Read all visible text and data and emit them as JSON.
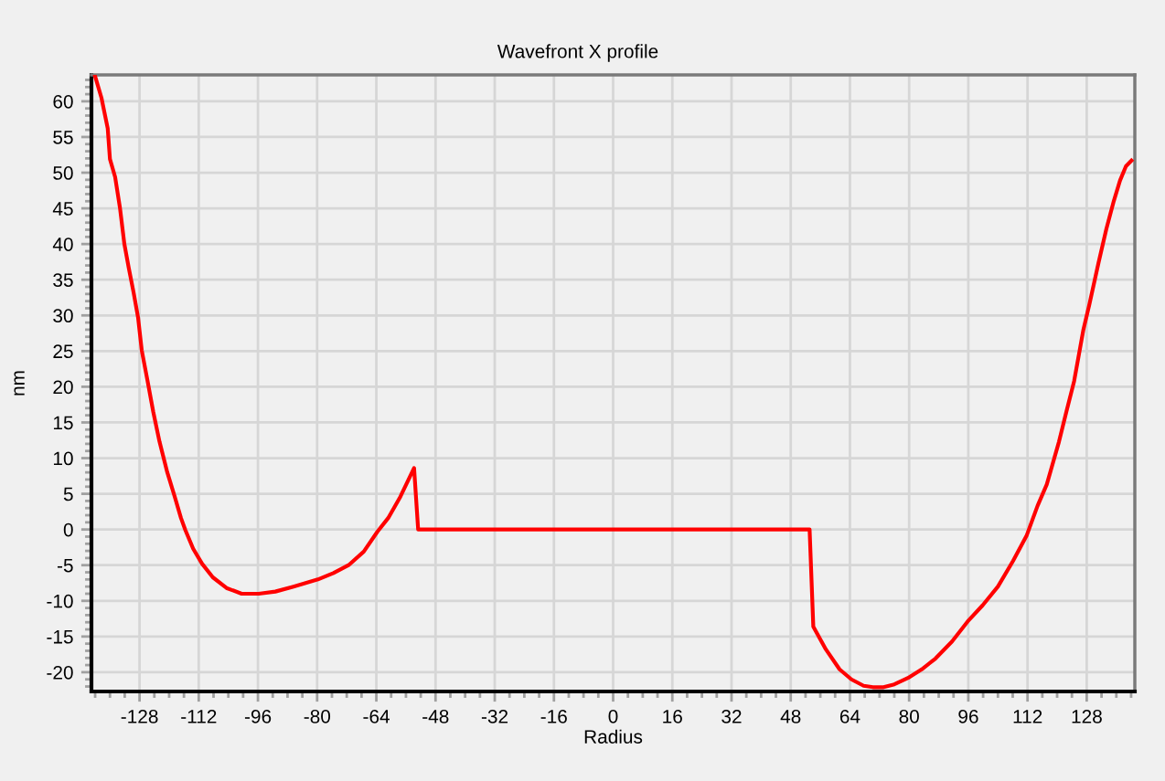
{
  "chart_data": {
    "type": "line",
    "title": "Wavefront X profile",
    "xlabel": "Radius",
    "ylabel": "nm",
    "series": [
      {
        "color": "#ff0000",
        "x": [
          -140.0,
          -138.3,
          -136.6,
          -136.0,
          -134.6,
          -133.3,
          -132.1,
          -130.9,
          -129.6,
          -128.4,
          -127.4,
          -125.9,
          -124.3,
          -122.6,
          -120.5,
          -118.5,
          -116.8,
          -115.6,
          -113.5,
          -111.1,
          -108.2,
          -104.5,
          -100.4,
          -95.8,
          -91.3,
          -86.4,
          -79.8,
          -75.6,
          -71.5,
          -67.4,
          -63.7,
          -60.8,
          -57.5,
          -53.8,
          -52.7,
          53.1,
          54.1,
          57.5,
          61.2,
          64.4,
          67.7,
          70.2,
          73.1,
          76.0,
          79.7,
          83.4,
          87.1,
          91.6,
          95.8,
          99.9,
          104.0,
          108.1,
          111.8,
          114.7,
          117.2,
          120.5,
          122.5,
          124.6,
          127.1,
          128.7,
          131.2,
          133.3,
          135.3,
          137.0,
          138.6,
          140.1
        ],
        "values": [
          63.5,
          60.5,
          56.2,
          51.9,
          49.4,
          45.1,
          40.0,
          36.6,
          33.2,
          29.7,
          25.1,
          21.0,
          16.5,
          12.3,
          8.0,
          4.6,
          1.6,
          -0.1,
          -2.7,
          -4.8,
          -6.7,
          -8.2,
          -9.0,
          -9.0,
          -8.7,
          -8.0,
          -7.0,
          -6.1,
          -5.0,
          -3.1,
          -0.3,
          1.6,
          4.6,
          8.6,
          0.0,
          0.0,
          -13.6,
          -16.8,
          -19.6,
          -21.0,
          -21.9,
          -22.1,
          -22.1,
          -21.7,
          -20.8,
          -19.6,
          -18.1,
          -15.7,
          -12.9,
          -10.6,
          -8.0,
          -4.4,
          -0.8,
          3.3,
          6.3,
          12.3,
          16.5,
          20.8,
          28.0,
          31.5,
          37.4,
          42.1,
          46.0,
          48.9,
          50.9,
          51.7
        ]
      }
    ],
    "xlim": [
      -141,
      141
    ],
    "xticks": [
      -128,
      -112,
      -96,
      -80,
      -64,
      -48,
      -32,
      -16,
      0,
      16,
      32,
      48,
      64,
      80,
      96,
      112,
      128
    ],
    "ylim": [
      -22.7,
      63.7
    ],
    "yticks": [
      -20,
      -15,
      -10,
      -5,
      0,
      5,
      10,
      15,
      20,
      25,
      30,
      35,
      40,
      45,
      50,
      55,
      60
    ],
    "grid": true,
    "line_style": "solid"
  }
}
